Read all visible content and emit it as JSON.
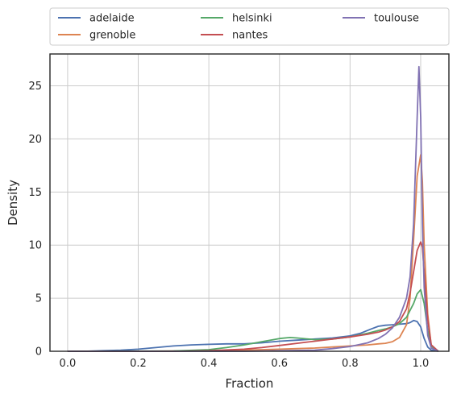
{
  "chart_data": {
    "type": "line",
    "xlabel": "Fraction",
    "ylabel": "Density",
    "xlim": [
      -0.05,
      1.08
    ],
    "ylim": [
      0,
      28
    ],
    "xticks": [
      "0.0",
      "0.2",
      "0.4",
      "0.6",
      "0.8",
      "1.0"
    ],
    "yticks": [
      "0",
      "5",
      "10",
      "15",
      "20",
      "25"
    ],
    "grid": true,
    "legend_position": "top",
    "legend_columns": 3,
    "series": [
      {
        "name": "adelaide",
        "color": "#4C72B0",
        "x": [
          0.0,
          0.05,
          0.1,
          0.15,
          0.2,
          0.25,
          0.3,
          0.35,
          0.4,
          0.45,
          0.5,
          0.55,
          0.6,
          0.65,
          0.7,
          0.75,
          0.8,
          0.83,
          0.86,
          0.88,
          0.9,
          0.92,
          0.94,
          0.96,
          0.97,
          0.98,
          0.99,
          1.0,
          1.01,
          1.02,
          1.03,
          1.05
        ],
        "y": [
          0.0,
          0.0,
          0.05,
          0.1,
          0.2,
          0.35,
          0.5,
          0.6,
          0.65,
          0.7,
          0.7,
          0.8,
          0.95,
          1.05,
          1.15,
          1.25,
          1.45,
          1.7,
          2.1,
          2.35,
          2.45,
          2.5,
          2.55,
          2.6,
          2.7,
          2.9,
          2.8,
          2.3,
          1.2,
          0.4,
          0.1,
          0.0
        ]
      },
      {
        "name": "grenoble",
        "color": "#DD8452",
        "x": [
          0.0,
          0.2,
          0.4,
          0.5,
          0.55,
          0.6,
          0.65,
          0.7,
          0.75,
          0.8,
          0.85,
          0.88,
          0.9,
          0.92,
          0.94,
          0.96,
          0.97,
          0.98,
          0.99,
          1.0,
          1.005,
          1.01,
          1.02,
          1.03,
          1.05
        ],
        "y": [
          0.0,
          0.0,
          0.05,
          0.1,
          0.15,
          0.2,
          0.25,
          0.3,
          0.4,
          0.5,
          0.6,
          0.7,
          0.75,
          0.9,
          1.3,
          2.5,
          5.0,
          10.5,
          16.5,
          18.5,
          16.0,
          10.0,
          3.5,
          0.5,
          0.0
        ]
      },
      {
        "name": "helsinki",
        "color": "#55A868",
        "x": [
          0.0,
          0.3,
          0.4,
          0.45,
          0.5,
          0.55,
          0.6,
          0.63,
          0.65,
          0.7,
          0.75,
          0.8,
          0.85,
          0.88,
          0.9,
          0.92,
          0.94,
          0.96,
          0.98,
          0.99,
          1.0,
          1.01,
          1.02,
          1.03,
          1.05
        ],
        "y": [
          0.0,
          0.02,
          0.15,
          0.35,
          0.6,
          0.9,
          1.2,
          1.3,
          1.25,
          1.1,
          1.15,
          1.35,
          1.7,
          1.95,
          2.1,
          2.3,
          2.6,
          3.2,
          4.5,
          5.4,
          5.8,
          4.5,
          2.0,
          0.5,
          0.0
        ]
      },
      {
        "name": "nantes",
        "color": "#C44E52",
        "x": [
          0.0,
          0.3,
          0.4,
          0.5,
          0.55,
          0.6,
          0.65,
          0.7,
          0.75,
          0.8,
          0.85,
          0.88,
          0.9,
          0.92,
          0.94,
          0.96,
          0.97,
          0.98,
          0.99,
          1.0,
          1.005,
          1.01,
          1.02,
          1.03,
          1.05
        ],
        "y": [
          0.0,
          0.0,
          0.05,
          0.2,
          0.35,
          0.55,
          0.75,
          0.95,
          1.15,
          1.35,
          1.6,
          1.8,
          2.0,
          2.3,
          2.8,
          4.0,
          5.5,
          7.5,
          9.5,
          10.3,
          9.8,
          7.5,
          3.0,
          0.6,
          0.0
        ]
      },
      {
        "name": "toulouse",
        "color": "#8172B3",
        "x": [
          0.0,
          0.5,
          0.6,
          0.7,
          0.75,
          0.8,
          0.85,
          0.88,
          0.9,
          0.92,
          0.94,
          0.96,
          0.97,
          0.98,
          0.99,
          0.995,
          1.0,
          1.005,
          1.01,
          1.02,
          1.03,
          1.05
        ],
        "y": [
          0.0,
          0.0,
          0.05,
          0.1,
          0.25,
          0.45,
          0.8,
          1.2,
          1.6,
          2.2,
          3.2,
          5.0,
          7.0,
          12.0,
          22.0,
          26.8,
          22.0,
          12.0,
          6.0,
          1.5,
          0.3,
          0.0
        ]
      }
    ]
  }
}
